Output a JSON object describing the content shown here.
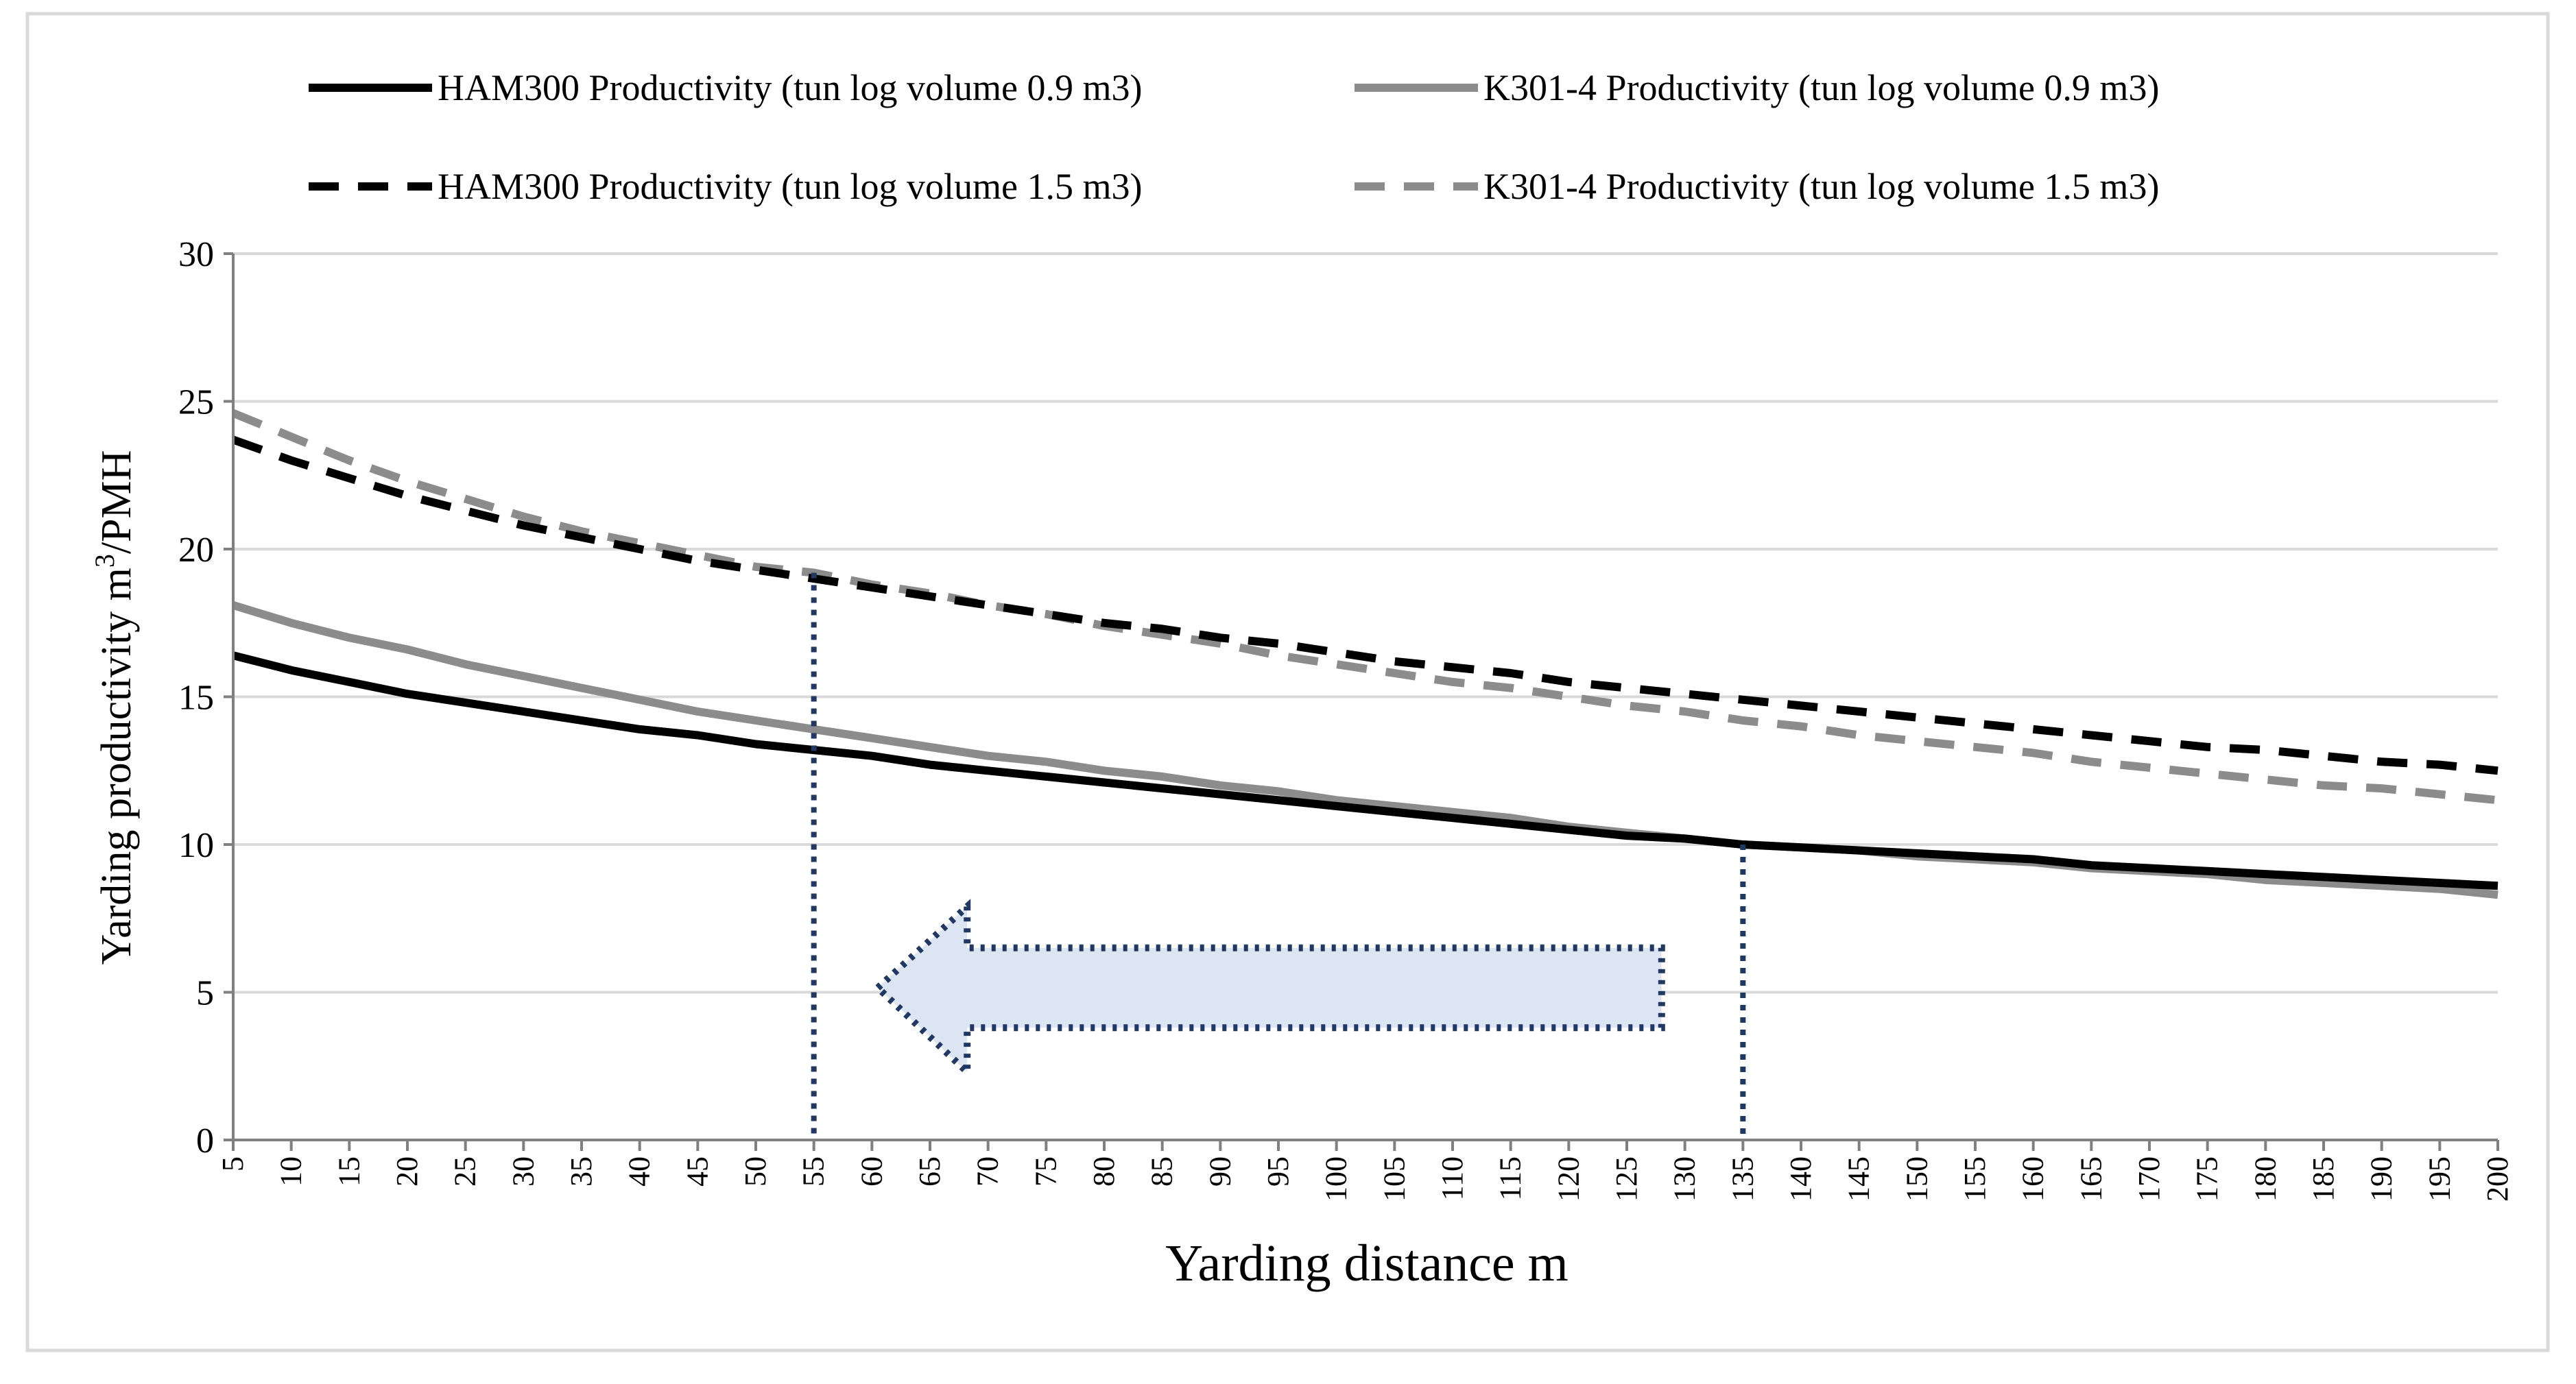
{
  "chart_data": {
    "type": "line",
    "xlabel": "Yarding distance m",
    "ylabel": "Yarding productivity m3/PMH",
    "ylabel_base": "Yarding productivity m",
    "ylabel_sup": "3",
    "ylabel_tail": "/PMH",
    "ylim": [
      0,
      30
    ],
    "yticks": [
      "0",
      "5",
      "10",
      "15",
      "20",
      "25",
      "30"
    ],
    "x": [
      "5",
      "10",
      "15",
      "20",
      "25",
      "30",
      "35",
      "40",
      "45",
      "50",
      "55",
      "60",
      "65",
      "70",
      "75",
      "80",
      "85",
      "90",
      "95",
      "100",
      "105",
      "110",
      "115",
      "120",
      "125",
      "130",
      "135",
      "140",
      "145",
      "150",
      "155",
      "160",
      "165",
      "170",
      "175",
      "180",
      "185",
      "190",
      "195",
      "200"
    ],
    "grid": "horizontal",
    "legend_position": "top",
    "series": [
      {
        "name": "HAM300 Productivity (tun log volume 0.9 m3)",
        "color": "#000000",
        "dash": "solid",
        "values": [
          16.4,
          15.9,
          15.5,
          15.1,
          14.8,
          14.5,
          14.2,
          13.9,
          13.7,
          13.4,
          13.2,
          13.0,
          12.7,
          12.5,
          12.3,
          12.1,
          11.9,
          11.7,
          11.5,
          11.3,
          11.1,
          10.9,
          10.7,
          10.5,
          10.3,
          10.2,
          10.0,
          9.9,
          9.8,
          9.7,
          9.6,
          9.5,
          9.3,
          9.2,
          9.1,
          9.0,
          8.9,
          8.8,
          8.7,
          8.6
        ]
      },
      {
        "name": "K301-4 Productivity (tun log volume 0.9 m3)",
        "color": "#8c8c8c",
        "dash": "solid",
        "values": [
          18.1,
          17.5,
          17.0,
          16.6,
          16.1,
          15.7,
          15.3,
          14.9,
          14.5,
          14.2,
          13.9,
          13.6,
          13.3,
          13.0,
          12.8,
          12.5,
          12.3,
          12.0,
          11.8,
          11.5,
          11.3,
          11.1,
          10.9,
          10.6,
          10.4,
          10.2,
          10.0,
          9.9,
          9.8,
          9.6,
          9.5,
          9.4,
          9.2,
          9.1,
          9.0,
          8.8,
          8.7,
          8.6,
          8.5,
          8.3
        ]
      },
      {
        "name": "HAM300 Productivity (tun log volume 1.5 m3)",
        "color": "#000000",
        "dash": "dashed",
        "values": [
          23.7,
          23.0,
          22.4,
          21.8,
          21.3,
          20.8,
          20.4,
          20.0,
          19.6,
          19.3,
          19.0,
          18.7,
          18.4,
          18.1,
          17.8,
          17.5,
          17.3,
          17.0,
          16.8,
          16.5,
          16.2,
          16.0,
          15.8,
          15.5,
          15.3,
          15.1,
          14.9,
          14.7,
          14.5,
          14.3,
          14.1,
          13.9,
          13.7,
          13.5,
          13.3,
          13.2,
          13.0,
          12.8,
          12.7,
          12.5
        ]
      },
      {
        "name": "K301-4 Productivity (tun log volume 1.5 m3)",
        "color": "#8c8c8c",
        "dash": "dashed",
        "values": [
          24.6,
          23.8,
          23.0,
          22.3,
          21.7,
          21.1,
          20.6,
          20.2,
          19.8,
          19.4,
          19.2,
          18.8,
          18.5,
          18.1,
          17.8,
          17.4,
          17.1,
          16.8,
          16.4,
          16.1,
          15.8,
          15.5,
          15.3,
          15.0,
          14.7,
          14.5,
          14.2,
          14.0,
          13.7,
          13.5,
          13.3,
          13.1,
          12.8,
          12.6,
          12.4,
          12.2,
          12.0,
          11.9,
          11.7,
          11.5
        ]
      }
    ],
    "annotations": {
      "reference_lines_x": [
        55,
        135
      ],
      "reference_color": "#1f3864",
      "arrow": {
        "from_x": 128,
        "to_x": 62,
        "y_top": 6.5,
        "y_bottom": 3.8,
        "head_top": 7.9,
        "head_bottom": 2.3,
        "fill": "#dce6f2",
        "stroke": "#1f3864",
        "direction": "left"
      }
    }
  }
}
